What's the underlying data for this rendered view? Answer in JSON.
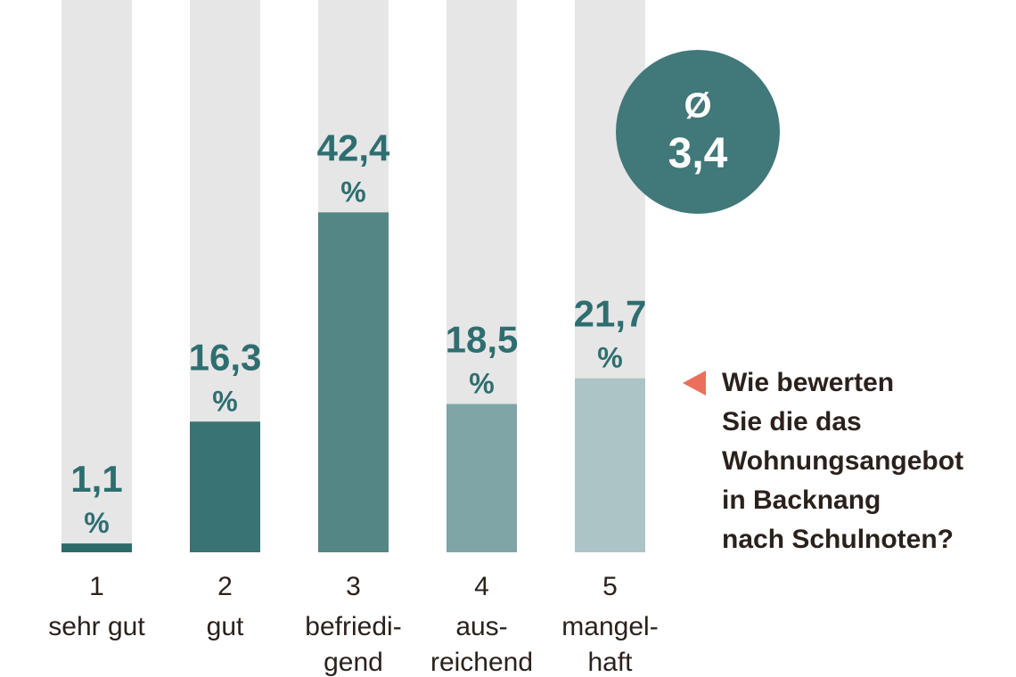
{
  "chart_data": {
    "type": "bar",
    "title": "",
    "xlabel": "",
    "ylabel": "",
    "ylim": [
      0,
      50
    ],
    "grid": false,
    "categories": [
      {
        "grade": "1",
        "label_lines": [
          "sehr gut"
        ]
      },
      {
        "grade": "2",
        "label_lines": [
          "gut"
        ]
      },
      {
        "grade": "3",
        "label_lines": [
          "befriedi-",
          "gend"
        ]
      },
      {
        "grade": "4",
        "label_lines": [
          "aus-",
          "reichend"
        ]
      },
      {
        "grade": "5",
        "label_lines": [
          "mangel-",
          "haft"
        ]
      }
    ],
    "values": [
      1.1,
      16.3,
      42.4,
      18.5,
      21.7
    ],
    "value_labels": [
      "1,1",
      "16,3",
      "42,4",
      "18,5",
      "21,7"
    ],
    "unit": "%",
    "bar_colors": [
      "#2d6b6b",
      "#3a7374",
      "#558686",
      "#80a5a6",
      "#adc4c6"
    ],
    "track_color": "#e6e6e6",
    "average": {
      "symbol": "Ø",
      "value": "3,4",
      "color": "#41787a"
    },
    "question": "Wie bewerten\nSie die das\nWohnungsangebot\nin Backnang\nnach Schulnoten?",
    "pointer_color": "#ec6f5c"
  }
}
